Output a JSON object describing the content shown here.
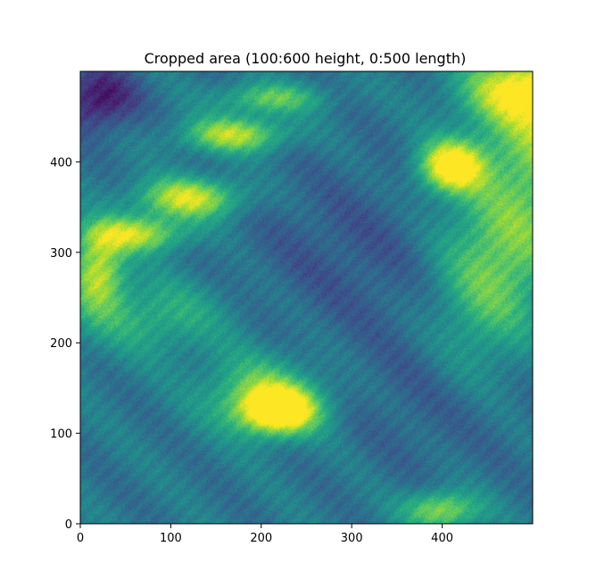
{
  "chart_data": {
    "type": "heatmap",
    "title": "Cropped area (100:600 height, 0:500 length)",
    "xlabel": "",
    "ylabel": "",
    "xlim": [
      0,
      500
    ],
    "ylim": [
      0,
      500
    ],
    "x_ticks": [
      0,
      100,
      200,
      300,
      400
    ],
    "y_ticks": [
      0,
      100,
      200,
      300,
      400
    ],
    "colormap": "viridis",
    "value_range": [
      0,
      1
    ],
    "colors": {
      "low": "#440154",
      "mid_low": "#3b528b",
      "mid": "#21918c",
      "mid_high": "#5ec962",
      "high": "#fde725"
    },
    "bright_regions": [
      {
        "x": 220,
        "y": 125,
        "sx": 30,
        "sy": 18,
        "intensity": 0.75
      },
      {
        "x": 200,
        "y": 145,
        "sx": 45,
        "sy": 30,
        "intensity": 0.35
      },
      {
        "x": 410,
        "y": 395,
        "sx": 25,
        "sy": 20,
        "intensity": 0.7
      },
      {
        "x": 540,
        "y": 440,
        "sx": 60,
        "sy": 60,
        "intensity": 0.5
      },
      {
        "x": 470,
        "y": 310,
        "sx": 50,
        "sy": 60,
        "intensity": 0.35
      },
      {
        "x": 120,
        "y": 360,
        "sx": 40,
        "sy": 16,
        "intensity": 0.55
      },
      {
        "x": 170,
        "y": 430,
        "sx": 40,
        "sy": 14,
        "intensity": 0.5
      },
      {
        "x": 60,
        "y": 320,
        "sx": 40,
        "sy": 14,
        "intensity": 0.5
      },
      {
        "x": 20,
        "y": 280,
        "sx": 20,
        "sy": 30,
        "intensity": 0.5
      },
      {
        "x": 210,
        "y": 470,
        "sx": 40,
        "sy": 12,
        "intensity": 0.35
      },
      {
        "x": 480,
        "y": 480,
        "sx": 40,
        "sy": 25,
        "intensity": 0.45
      },
      {
        "x": 400,
        "y": 15,
        "sx": 30,
        "sy": 15,
        "intensity": 0.45
      },
      {
        "x": 80,
        "y": 230,
        "sx": 60,
        "sy": 30,
        "intensity": 0.25
      },
      {
        "x": 440,
        "y": 220,
        "sx": 40,
        "sy": 60,
        "intensity": 0.2
      }
    ],
    "dark_regions": [
      {
        "x": 20,
        "y": 470,
        "sx": 30,
        "sy": 25,
        "intensity": 0.35
      },
      {
        "x": 300,
        "y": 300,
        "sx": 90,
        "sy": 70,
        "intensity": 0.12
      },
      {
        "x": 400,
        "y": 140,
        "sx": 70,
        "sy": 60,
        "intensity": 0.1
      }
    ]
  }
}
